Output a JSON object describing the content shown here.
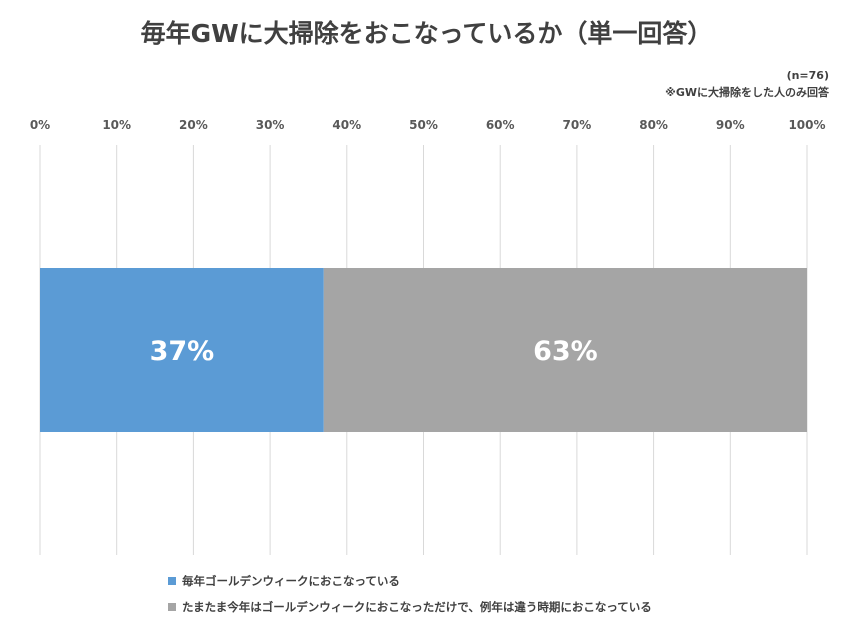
{
  "chart_data": {
    "type": "bar",
    "orientation": "horizontal-stacked-100",
    "title": "毎年GWに大掃除をおこなっているか（単一回答）",
    "notes": [
      "(n=76)",
      "※GWに大掃除をした人のみ回答"
    ],
    "xlim": [
      0,
      100
    ],
    "ticks": [
      0,
      10,
      20,
      30,
      40,
      50,
      60,
      70,
      80,
      90,
      100
    ],
    "tick_labels": [
      "0%",
      "10%",
      "20%",
      "30%",
      "40%",
      "50%",
      "60%",
      "70%",
      "80%",
      "90%",
      "100%"
    ],
    "grid": true,
    "legend_position": "bottom",
    "series": [
      {
        "name": "毎年ゴールデンウィークにおこなっている",
        "value": 37,
        "label": "37%",
        "color": "#5b9bd5"
      },
      {
        "name": "たまたま今年はゴールデンウィークにおこなっただけで、例年は違う時期におこなっている",
        "value": 63,
        "label": "63%",
        "color": "#a5a5a5"
      }
    ]
  }
}
